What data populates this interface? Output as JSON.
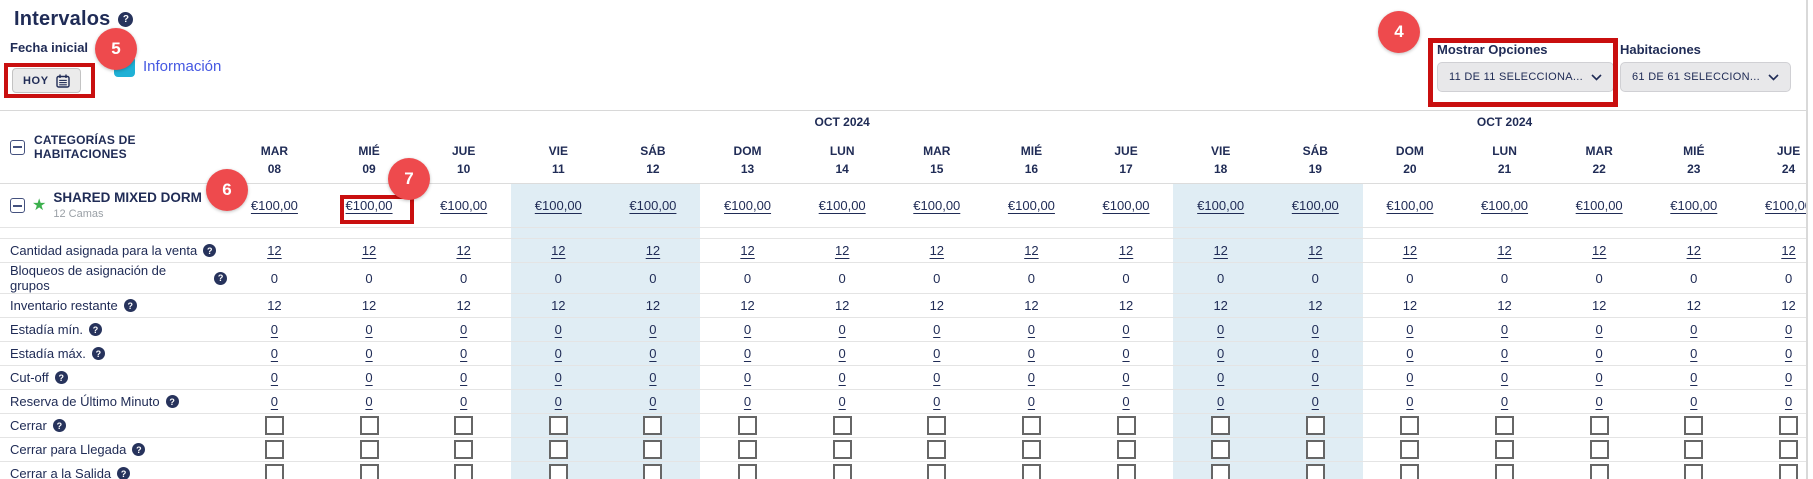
{
  "header": {
    "title": "Intervalos"
  },
  "controls": {
    "fecha_inicial_label": "Fecha inicial",
    "hoy_button": "HOY",
    "informacion_link": "Información",
    "mostrar_opciones": {
      "label": "Mostrar Opciones",
      "value": "11 DE 11 SELECCIONA..."
    },
    "habitaciones": {
      "label": "Habitaciones",
      "value": "61 DE 61 SELECCION..."
    }
  },
  "icons": {
    "help": "?",
    "star": "★"
  },
  "annotations": {
    "badge_4": "4",
    "badge_5": "5",
    "badge_6": "6",
    "badge_7": "7"
  },
  "table": {
    "corner_label": "CATEGORÍAS DE HABITACIONES",
    "days": [
      {
        "name": "MAR",
        "num": "08",
        "weekend": false,
        "month": null
      },
      {
        "name": "MIÉ",
        "num": "09",
        "weekend": false,
        "month": null
      },
      {
        "name": "JUE",
        "num": "10",
        "weekend": false,
        "month": null
      },
      {
        "name": "VIE",
        "num": "11",
        "weekend": true,
        "month": null
      },
      {
        "name": "SÁB",
        "num": "12",
        "weekend": true,
        "month": null
      },
      {
        "name": "DOM",
        "num": "13",
        "weekend": false,
        "month": null
      },
      {
        "name": "LUN",
        "num": "14",
        "weekend": false,
        "month": "OCT 2024"
      },
      {
        "name": "MAR",
        "num": "15",
        "weekend": false,
        "month": null
      },
      {
        "name": "MIÉ",
        "num": "16",
        "weekend": false,
        "month": null
      },
      {
        "name": "JUE",
        "num": "17",
        "weekend": false,
        "month": null
      },
      {
        "name": "VIE",
        "num": "18",
        "weekend": true,
        "month": null
      },
      {
        "name": "SÁB",
        "num": "19",
        "weekend": true,
        "month": null
      },
      {
        "name": "DOM",
        "num": "20",
        "weekend": false,
        "month": null
      },
      {
        "name": "LUN",
        "num": "21",
        "weekend": false,
        "month": "OCT 2024"
      },
      {
        "name": "MAR",
        "num": "22",
        "weekend": false,
        "month": null
      },
      {
        "name": "MIÉ",
        "num": "23",
        "weekend": false,
        "month": null
      },
      {
        "name": "JUE",
        "num": "24",
        "weekend": false,
        "month": null
      }
    ],
    "category": {
      "name": "SHARED MIXED DORM",
      "subtitle": "12 Camas",
      "rate": "€100,00"
    },
    "rows": [
      {
        "key": "cantidad-asignada",
        "label": "Cantidad asignada para la venta",
        "value": "12",
        "link": true,
        "type": "value"
      },
      {
        "key": "bloqueos-grupos",
        "label": "Bloqueos de asignación de grupos",
        "value": "0",
        "link": false,
        "type": "value"
      },
      {
        "key": "inventario-restante",
        "label": "Inventario restante",
        "value": "12",
        "link": false,
        "type": "value"
      },
      {
        "key": "estadia-min",
        "label": "Estadía mín.",
        "value": "0",
        "link": true,
        "type": "value"
      },
      {
        "key": "estadia-max",
        "label": "Estadía máx.",
        "value": "0",
        "link": true,
        "type": "value"
      },
      {
        "key": "cut-off",
        "label": "Cut-off",
        "value": "0",
        "link": true,
        "type": "value"
      },
      {
        "key": "reserva-ultimo-minuto",
        "label": "Reserva de Último Minuto",
        "value": "0",
        "link": true,
        "type": "value"
      },
      {
        "key": "cerrar",
        "label": "Cerrar",
        "type": "checkbox"
      },
      {
        "key": "cerrar-llegada",
        "label": "Cerrar para Llegada",
        "type": "checkbox"
      },
      {
        "key": "cerrar-salida",
        "label": "Cerrar a la Salida",
        "type": "checkbox"
      }
    ]
  },
  "colors": {
    "navy_text": "#202c56",
    "weekend_blue": "#e0edf4",
    "annotation_red": "#c90f0f",
    "badge_red": "#ee4a4d",
    "link_blue": "#4558e2",
    "info_teal": "#1fb1d6",
    "star_green": "#3cb04d"
  }
}
